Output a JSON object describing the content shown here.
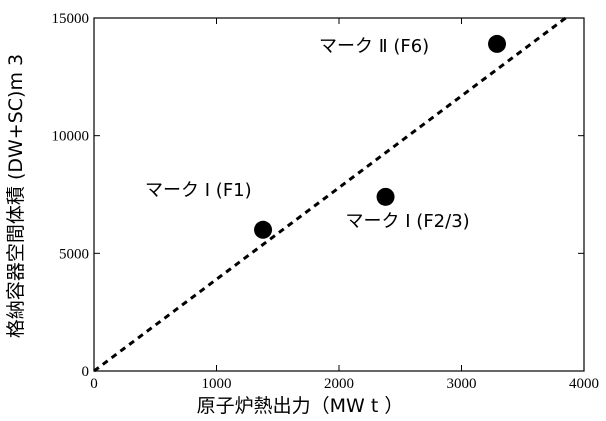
{
  "chart_data": {
    "type": "scatter",
    "title": "",
    "xlabel": "原子炉熱出力（MW t ）",
    "ylabel": "格納容器空間体積 (DW+SC)m 3",
    "xlim": [
      0,
      4000
    ],
    "ylim": [
      0,
      15000
    ],
    "x_ticks": [
      "0",
      "1000",
      "2000",
      "3000",
      "4000"
    ],
    "y_ticks": [
      "0",
      "5000",
      "10000",
      "15000"
    ],
    "grid": false,
    "legend": "none",
    "points": [
      {
        "label": "マーク I (F1)",
        "x": 1380,
        "y": 6000
      },
      {
        "label": "マーク I (F2/3)",
        "x": 2380,
        "y": 7400
      },
      {
        "label": "マーク Ⅱ (F6)",
        "x": 3290,
        "y": 13900
      }
    ],
    "trend_line": {
      "style": "dashed",
      "points": [
        [
          0,
          0
        ],
        [
          3850,
          15000
        ]
      ]
    },
    "colors": {
      "marker": "#000000",
      "line": "#000000",
      "background": "#ffffff"
    }
  }
}
